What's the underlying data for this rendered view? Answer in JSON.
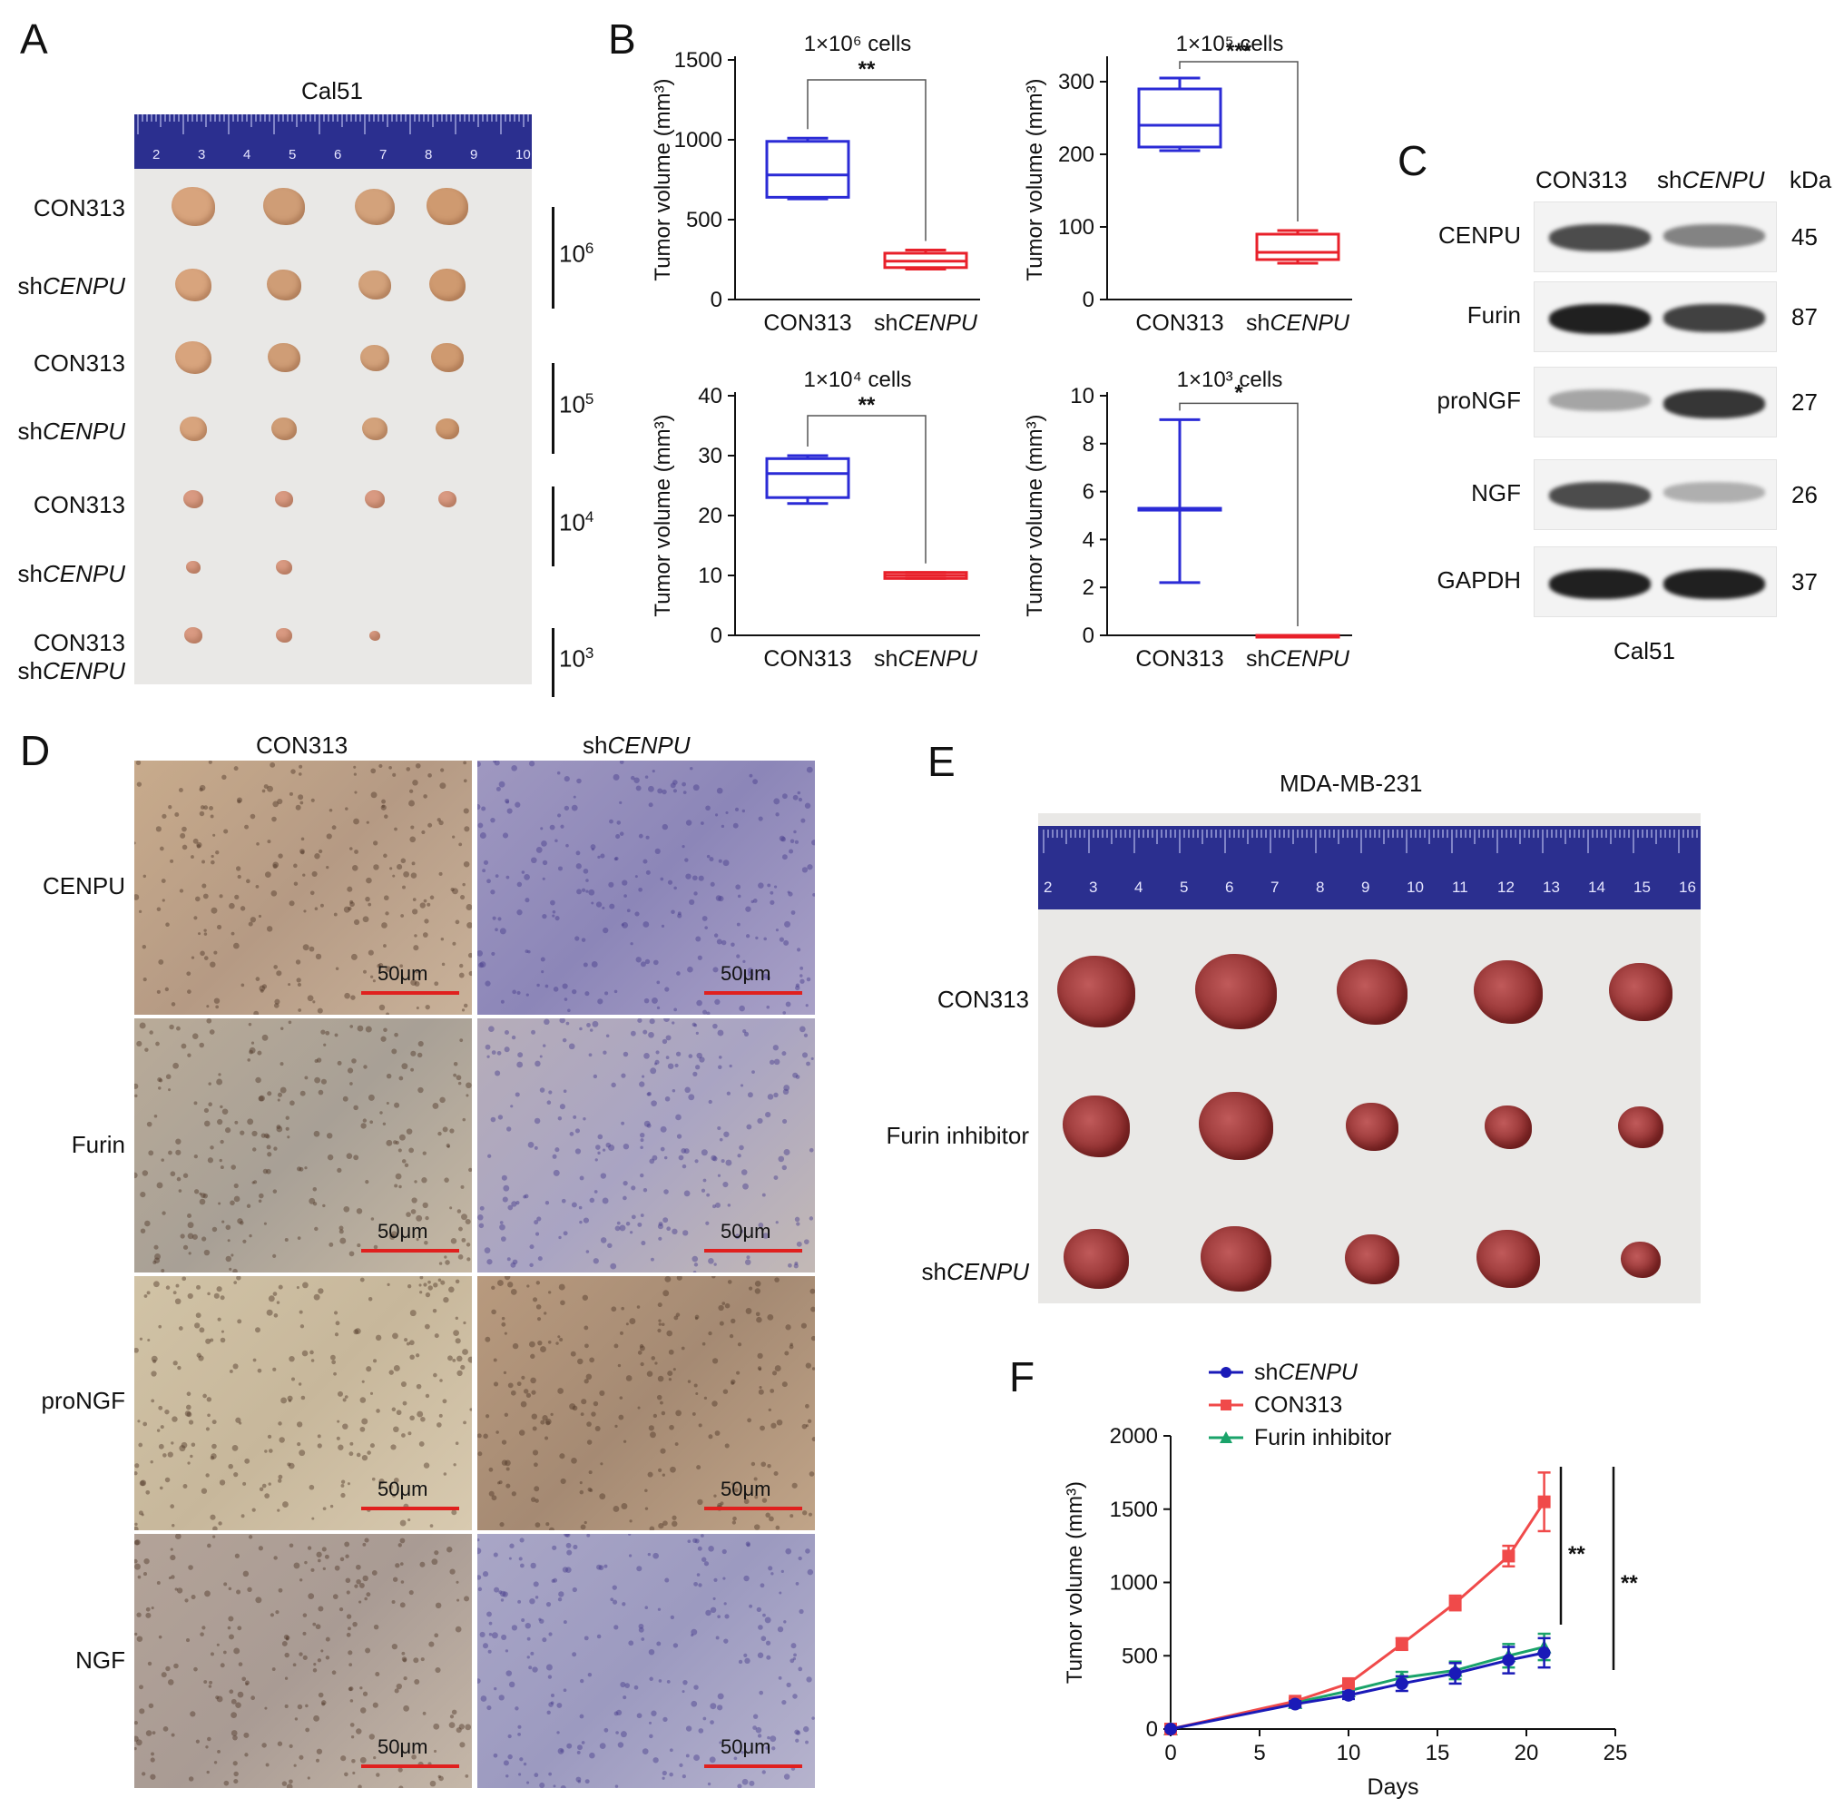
{
  "panels": {
    "A": "A",
    "B": "B",
    "C": "C",
    "D": "D",
    "E": "E",
    "F": "F"
  },
  "panelA": {
    "title": "Cal51",
    "ruler_numbers": [
      "2",
      "3",
      "4",
      "5",
      "6",
      "7",
      "8",
      "9",
      "10"
    ],
    "row_labels": [
      {
        "prefix": "CON313",
        "italic": ""
      },
      {
        "prefix": "sh",
        "italic": "CENPU"
      },
      {
        "prefix": "CON313",
        "italic": ""
      },
      {
        "prefix": "sh",
        "italic": "CENPU"
      },
      {
        "prefix": "CON313",
        "italic": ""
      },
      {
        "prefix": "sh",
        "italic": "CENPU"
      },
      {
        "prefix": "CON313",
        "italic": ""
      },
      {
        "prefix": "sh",
        "italic": "CENPU"
      }
    ],
    "dose_labels": [
      {
        "base": "10",
        "exp": "6"
      },
      {
        "base": "10",
        "exp": "5"
      },
      {
        "base": "10",
        "exp": "4"
      },
      {
        "base": "10",
        "exp": "3"
      }
    ]
  },
  "panelC": {
    "headers": {
      "con": "CON313",
      "sh_prefix": "sh",
      "sh_italic": "CENPU",
      "unit": "kDa"
    },
    "rows": [
      {
        "label": "CENPU",
        "kda": "45"
      },
      {
        "label": "Furin",
        "kda": "87"
      },
      {
        "label": "proNGF",
        "kda": "27"
      },
      {
        "label": "NGF",
        "kda": "26"
      },
      {
        "label": "GAPDH",
        "kda": "37"
      }
    ],
    "footer": "Cal51"
  },
  "panelD": {
    "col_headers": {
      "con": "CON313",
      "sh_prefix": "sh",
      "sh_italic": "CENPU"
    },
    "row_labels": [
      "CENPU",
      "Furin",
      "proNGF",
      "NGF"
    ],
    "scale_label": "50μm"
  },
  "panelE": {
    "title": "MDA-MB-231",
    "ruler_numbers": [
      "2",
      "3",
      "4",
      "5",
      "6",
      "7",
      "8",
      "9",
      "10",
      "11",
      "12",
      "13",
      "14",
      "15",
      "16"
    ],
    "row_labels": [
      {
        "prefix": "CON313",
        "italic": ""
      },
      {
        "prefix": "Furin inhibitor",
        "italic": ""
      },
      {
        "prefix": "sh",
        "italic": "CENPU"
      }
    ]
  },
  "chart_data": [
    {
      "id": "B1",
      "type": "box",
      "title": "1×10⁶ cells",
      "ylabel": "Tumor volume (mm³)",
      "ylim": [
        0,
        1500
      ],
      "yticks": [
        0,
        500,
        1000,
        1500
      ],
      "categories": [
        "CON313",
        "shCENPU"
      ],
      "boxes": [
        {
          "min": 630,
          "q1": 640,
          "median": 780,
          "q3": 990,
          "max": 1010,
          "color": "#2b2bd6"
        },
        {
          "min": 190,
          "q1": 200,
          "median": 240,
          "q3": 290,
          "max": 310,
          "color": "#e8202a"
        }
      ],
      "significance": "**"
    },
    {
      "id": "B2",
      "type": "box",
      "title": "1×10⁵ cells",
      "ylabel": "Tumor volume (mm³)",
      "ylim": [
        0,
        330
      ],
      "yticks": [
        0,
        100,
        200,
        300
      ],
      "categories": [
        "CON313",
        "shCENPU"
      ],
      "boxes": [
        {
          "min": 205,
          "q1": 210,
          "median": 240,
          "q3": 290,
          "max": 305,
          "color": "#2b2bd6"
        },
        {
          "min": 50,
          "q1": 55,
          "median": 65,
          "q3": 90,
          "max": 95,
          "color": "#e8202a"
        }
      ],
      "significance": "***"
    },
    {
      "id": "B3",
      "type": "box",
      "title": "1×10⁴ cells",
      "ylabel": "Tumor volume (mm³)",
      "ylim": [
        0,
        40
      ],
      "yticks": [
        0,
        10,
        20,
        30,
        40
      ],
      "categories": [
        "CON313",
        "shCENPU"
      ],
      "boxes": [
        {
          "min": 22,
          "q1": 23,
          "median": 27,
          "q3": 29.5,
          "max": 30,
          "color": "#2b2bd6"
        },
        {
          "min": 9.5,
          "q1": 9.5,
          "median": 10,
          "q3": 10.5,
          "max": 10.5,
          "color": "#e8202a"
        }
      ],
      "significance": "**"
    },
    {
      "id": "B4",
      "type": "box",
      "title": "1×10³ cells",
      "ylabel": "Tumor volume (mm³)",
      "ylim": [
        0,
        10
      ],
      "yticks": [
        0,
        2,
        4,
        6,
        8,
        10
      ],
      "categories": [
        "CON313",
        "shCENPU"
      ],
      "boxes": [
        {
          "min": 2.2,
          "q1": 5.3,
          "median": 5.3,
          "q3": 5.3,
          "max": 9,
          "color": "#2b2bd6"
        },
        {
          "min": 0,
          "q1": 0,
          "median": 0,
          "q3": 0,
          "max": 0,
          "color": "#e8202a"
        }
      ],
      "significance": "*"
    },
    {
      "id": "F",
      "type": "line",
      "xlabel": "Days",
      "ylabel": "Tumor volume (mm³)",
      "xlim": [
        0,
        25
      ],
      "xticks": [
        0,
        5,
        10,
        15,
        20,
        25
      ],
      "ylim": [
        0,
        2000
      ],
      "yticks": [
        0,
        500,
        1000,
        1500,
        2000
      ],
      "x": [
        0,
        7,
        10,
        13,
        16,
        19,
        21
      ],
      "series": [
        {
          "name": "shCENPU",
          "name_prefix": "sh",
          "name_italic": "CENPU",
          "color": "#1a1ab8",
          "marker": "circle",
          "values": [
            0,
            170,
            230,
            310,
            380,
            470,
            520
          ],
          "errors": [
            0,
            20,
            25,
            50,
            70,
            90,
            100
          ]
        },
        {
          "name": "CON313",
          "name_prefix": "CON313",
          "name_italic": "",
          "color": "#f04a4a",
          "marker": "square",
          "values": [
            0,
            190,
            310,
            580,
            860,
            1180,
            1550
          ],
          "errors": [
            0,
            20,
            25,
            40,
            50,
            70,
            200
          ]
        },
        {
          "name": "Furin inhibitor",
          "name_prefix": "Furin inhibitor",
          "name_italic": "",
          "color": "#1aa36a",
          "marker": "triangle",
          "values": [
            0,
            180,
            260,
            350,
            400,
            500,
            560
          ],
          "errors": [
            0,
            20,
            25,
            40,
            60,
            80,
            90
          ]
        }
      ],
      "significance": [
        "**",
        "**"
      ]
    }
  ]
}
